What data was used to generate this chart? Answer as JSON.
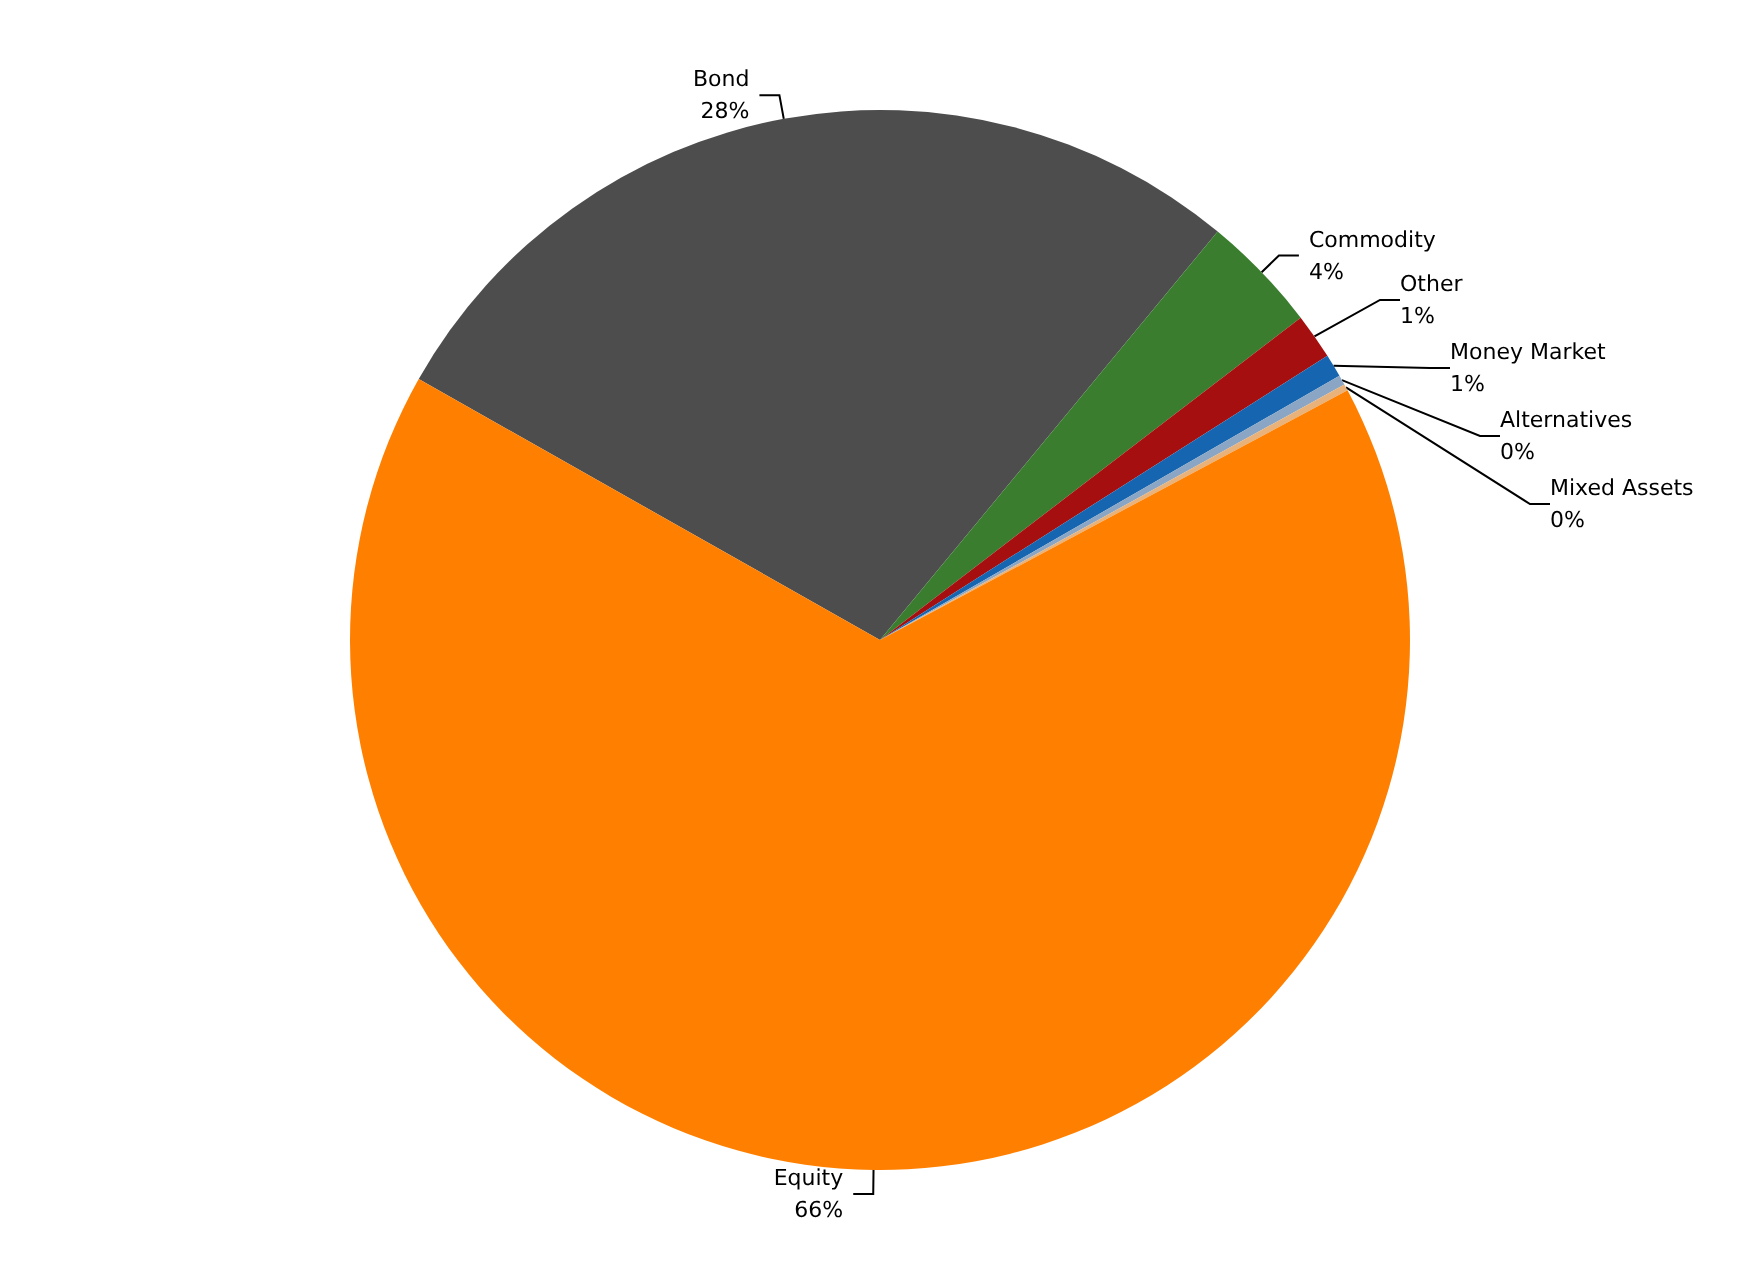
{
  "chart_data": {
    "type": "pie",
    "categories": [
      "Bond",
      "Commodity",
      "Other",
      "Money Market",
      "Alternatives",
      "Mixed Assets",
      "Equity"
    ],
    "values": [
      27.8,
      3.6,
      1.4,
      0.7,
      0.3,
      0.2,
      66.0
    ],
    "value_labels": [
      "28%",
      "4%",
      "1%",
      "1%",
      "0%",
      "0%",
      "66%"
    ],
    "colors": [
      "#4d4d4d",
      "#3a7d2e",
      "#a50f0f",
      "#1565b0",
      "#8aa6c4",
      "#e8b27a",
      "#ff8000"
    ]
  }
}
